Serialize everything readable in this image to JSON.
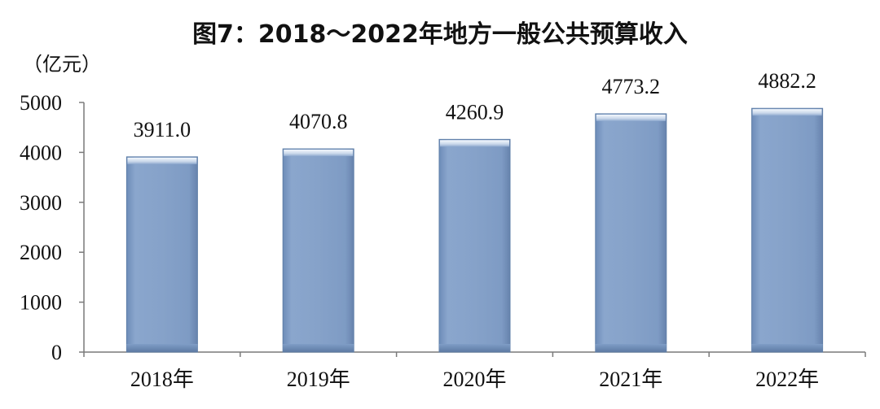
{
  "chart_data": {
    "type": "bar",
    "title": "图7：2018～2022年地方一般公共预算收入",
    "unit_label": "（亿元）",
    "xlabel": "",
    "ylabel": "",
    "categories": [
      "2018年",
      "2019年",
      "2020年",
      "2021年",
      "2022年"
    ],
    "values": [
      3911.0,
      4070.8,
      4260.9,
      4773.2,
      4882.2
    ],
    "value_labels": [
      "3911.0",
      "4070.8",
      "4260.9",
      "4773.2",
      "4882.2"
    ],
    "ylim": [
      0,
      5000
    ],
    "yticks": [
      0,
      1000,
      2000,
      3000,
      4000,
      5000
    ],
    "ytick_labels": [
      "0",
      "1000",
      "2000",
      "3000",
      "4000",
      "5000"
    ],
    "grid": false,
    "legend": "none",
    "colors": {
      "bar_fill": "#7f9dc6",
      "bar_edge": "#5f7fa8",
      "bar_top": "#e3ebf6",
      "axis": "#7a7a7a"
    }
  }
}
